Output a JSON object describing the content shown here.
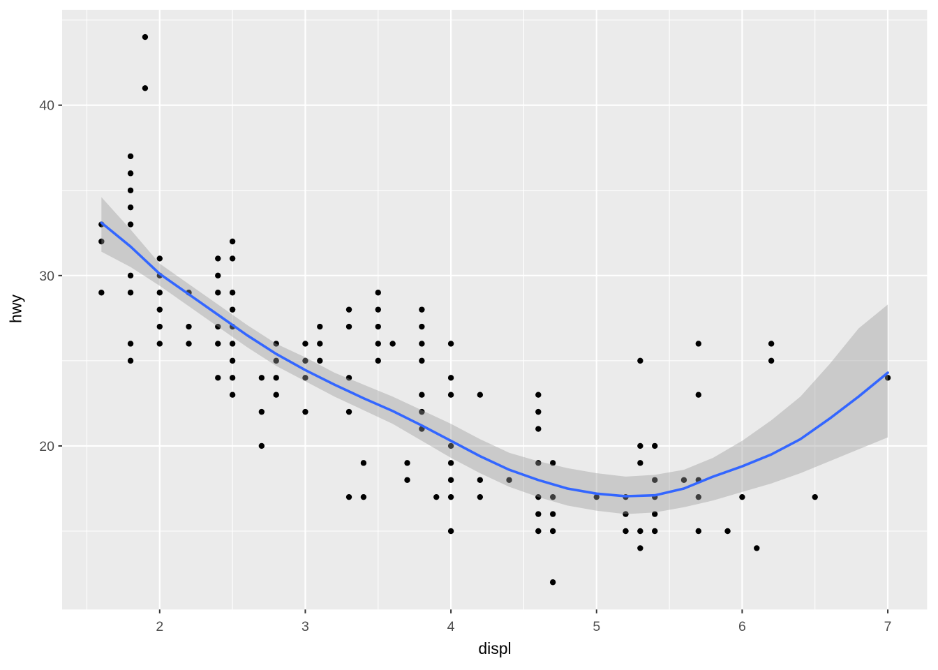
{
  "figure": {
    "background": "#FFFFFF",
    "panel_background": "#EBEBEB"
  },
  "chart_data": {
    "type": "scatter",
    "title": "",
    "xlabel": "displ",
    "ylabel": "hwy",
    "xlim": [
      1.33,
      7.27
    ],
    "ylim": [
      10.4,
      45.6
    ],
    "x_ticks": [
      2,
      3,
      4,
      5,
      6,
      7
    ],
    "y_ticks": [
      20,
      30,
      40
    ],
    "x_minor": [
      1.5,
      2.5,
      3.5,
      4.5,
      5.5,
      6.5
    ],
    "y_minor": [
      15,
      25,
      35,
      45
    ],
    "grid": "on",
    "legend": "none",
    "points": [
      [
        1.6,
        33
      ],
      [
        1.6,
        32
      ],
      [
        1.6,
        29
      ],
      [
        1.8,
        37
      ],
      [
        1.8,
        36
      ],
      [
        1.8,
        35
      ],
      [
        1.8,
        34
      ],
      [
        1.8,
        33
      ],
      [
        1.8,
        30
      ],
      [
        1.8,
        29
      ],
      [
        1.8,
        26
      ],
      [
        1.8,
        25
      ],
      [
        1.9,
        44
      ],
      [
        1.9,
        41
      ],
      [
        2.0,
        31
      ],
      [
        2.0,
        30
      ],
      [
        2.0,
        29
      ],
      [
        2.0,
        28
      ],
      [
        2.0,
        27
      ],
      [
        2.0,
        26
      ],
      [
        2.2,
        29
      ],
      [
        2.2,
        27
      ],
      [
        2.2,
        26
      ],
      [
        2.4,
        31
      ],
      [
        2.4,
        30
      ],
      [
        2.4,
        29
      ],
      [
        2.4,
        27
      ],
      [
        2.4,
        26
      ],
      [
        2.4,
        24
      ],
      [
        2.5,
        32
      ],
      [
        2.5,
        31
      ],
      [
        2.5,
        29
      ],
      [
        2.5,
        28
      ],
      [
        2.5,
        27
      ],
      [
        2.5,
        26
      ],
      [
        2.5,
        25
      ],
      [
        2.5,
        24
      ],
      [
        2.5,
        23
      ],
      [
        2.7,
        24
      ],
      [
        2.7,
        22
      ],
      [
        2.7,
        20
      ],
      [
        2.8,
        26
      ],
      [
        2.8,
        25
      ],
      [
        2.8,
        24
      ],
      [
        2.8,
        23
      ],
      [
        3.0,
        26
      ],
      [
        3.0,
        25
      ],
      [
        3.0,
        24
      ],
      [
        3.0,
        22
      ],
      [
        3.1,
        27
      ],
      [
        3.1,
        26
      ],
      [
        3.1,
        25
      ],
      [
        3.3,
        28
      ],
      [
        3.3,
        27
      ],
      [
        3.3,
        24
      ],
      [
        3.3,
        22
      ],
      [
        3.3,
        17
      ],
      [
        3.4,
        19
      ],
      [
        3.4,
        17
      ],
      [
        3.5,
        29
      ],
      [
        3.5,
        28
      ],
      [
        3.5,
        27
      ],
      [
        3.5,
        26
      ],
      [
        3.5,
        25
      ],
      [
        3.6,
        26
      ],
      [
        3.7,
        19
      ],
      [
        3.7,
        18
      ],
      [
        3.8,
        28
      ],
      [
        3.8,
        27
      ],
      [
        3.8,
        26
      ],
      [
        3.8,
        25
      ],
      [
        3.8,
        23
      ],
      [
        3.8,
        22
      ],
      [
        3.8,
        21
      ],
      [
        3.9,
        17
      ],
      [
        4.0,
        26
      ],
      [
        4.0,
        24
      ],
      [
        4.0,
        23
      ],
      [
        4.0,
        20
      ],
      [
        4.0,
        19
      ],
      [
        4.0,
        18
      ],
      [
        4.0,
        17
      ],
      [
        4.0,
        15
      ],
      [
        4.2,
        23
      ],
      [
        4.2,
        18
      ],
      [
        4.2,
        17
      ],
      [
        4.4,
        18
      ],
      [
        4.6,
        23
      ],
      [
        4.6,
        22
      ],
      [
        4.6,
        21
      ],
      [
        4.6,
        19
      ],
      [
        4.6,
        17
      ],
      [
        4.6,
        16
      ],
      [
        4.6,
        15
      ],
      [
        4.7,
        19
      ],
      [
        4.7,
        17
      ],
      [
        4.7,
        16
      ],
      [
        4.7,
        15
      ],
      [
        4.7,
        12
      ],
      [
        5.0,
        17
      ],
      [
        5.2,
        17
      ],
      [
        5.2,
        16
      ],
      [
        5.2,
        15
      ],
      [
        5.3,
        25
      ],
      [
        5.3,
        20
      ],
      [
        5.3,
        19
      ],
      [
        5.3,
        15
      ],
      [
        5.3,
        14
      ],
      [
        5.4,
        20
      ],
      [
        5.4,
        18
      ],
      [
        5.4,
        17
      ],
      [
        5.4,
        16
      ],
      [
        5.4,
        15
      ],
      [
        5.6,
        18
      ],
      [
        5.7,
        26
      ],
      [
        5.7,
        23
      ],
      [
        5.7,
        18
      ],
      [
        5.7,
        17
      ],
      [
        5.7,
        15
      ],
      [
        5.9,
        15
      ],
      [
        6.0,
        17
      ],
      [
        6.1,
        14
      ],
      [
        6.2,
        26
      ],
      [
        6.2,
        25
      ],
      [
        6.5,
        17
      ],
      [
        7.0,
        24
      ]
    ],
    "smooth_line": [
      [
        1.6,
        33.1
      ],
      [
        1.8,
        31.7
      ],
      [
        2.0,
        30.1
      ],
      [
        2.2,
        28.9
      ],
      [
        2.4,
        27.7
      ],
      [
        2.6,
        26.5
      ],
      [
        2.8,
        25.4
      ],
      [
        3.0,
        24.45
      ],
      [
        3.2,
        23.6
      ],
      [
        3.4,
        22.8
      ],
      [
        3.6,
        22.05
      ],
      [
        3.8,
        21.2
      ],
      [
        4.0,
        20.3
      ],
      [
        4.2,
        19.4
      ],
      [
        4.4,
        18.6
      ],
      [
        4.6,
        18.0
      ],
      [
        4.8,
        17.5
      ],
      [
        5.0,
        17.2
      ],
      [
        5.2,
        17.05
      ],
      [
        5.4,
        17.1
      ],
      [
        5.6,
        17.5
      ],
      [
        5.8,
        18.2
      ],
      [
        6.0,
        18.8
      ],
      [
        6.2,
        19.5
      ],
      [
        6.4,
        20.4
      ],
      [
        6.6,
        21.6
      ],
      [
        6.8,
        22.9
      ],
      [
        7.0,
        24.3
      ]
    ],
    "ribbon": [
      [
        1.6,
        31.4,
        34.6
      ],
      [
        1.8,
        30.5,
        32.7
      ],
      [
        2.0,
        29.4,
        30.7
      ],
      [
        2.2,
        28.2,
        29.5
      ],
      [
        2.4,
        27.0,
        28.3
      ],
      [
        2.6,
        25.8,
        27.1
      ],
      [
        2.8,
        24.7,
        26.0
      ],
      [
        3.0,
        23.8,
        25.2
      ],
      [
        3.2,
        22.9,
        24.3
      ],
      [
        3.4,
        22.1,
        23.6
      ],
      [
        3.6,
        21.3,
        22.9
      ],
      [
        3.8,
        20.3,
        22.1
      ],
      [
        4.0,
        19.3,
        21.3
      ],
      [
        4.2,
        18.4,
        20.4
      ],
      [
        4.4,
        17.6,
        19.6
      ],
      [
        4.6,
        17.0,
        19.1
      ],
      [
        4.8,
        16.5,
        18.7
      ],
      [
        5.0,
        16.2,
        18.4
      ],
      [
        5.2,
        16.0,
        18.2
      ],
      [
        5.4,
        16.1,
        18.3
      ],
      [
        5.6,
        16.4,
        18.6
      ],
      [
        5.8,
        16.8,
        19.3
      ],
      [
        6.0,
        17.3,
        20.3
      ],
      [
        6.2,
        17.8,
        21.5
      ],
      [
        6.4,
        18.4,
        22.9
      ],
      [
        6.6,
        19.1,
        24.8
      ],
      [
        6.8,
        19.8,
        26.9
      ],
      [
        7.0,
        20.5,
        28.3
      ]
    ],
    "colors": {
      "panel": "#EBEBEB",
      "grid_major": "#FFFFFF",
      "grid_minor": "#FFFFFF",
      "point": "#000000",
      "smooth_line": "#3366FF",
      "ribbon_fill": "#999999",
      "tick_mark": "#333333",
      "tick_label": "#4D4D4D",
      "axis_title": "#000000"
    }
  }
}
